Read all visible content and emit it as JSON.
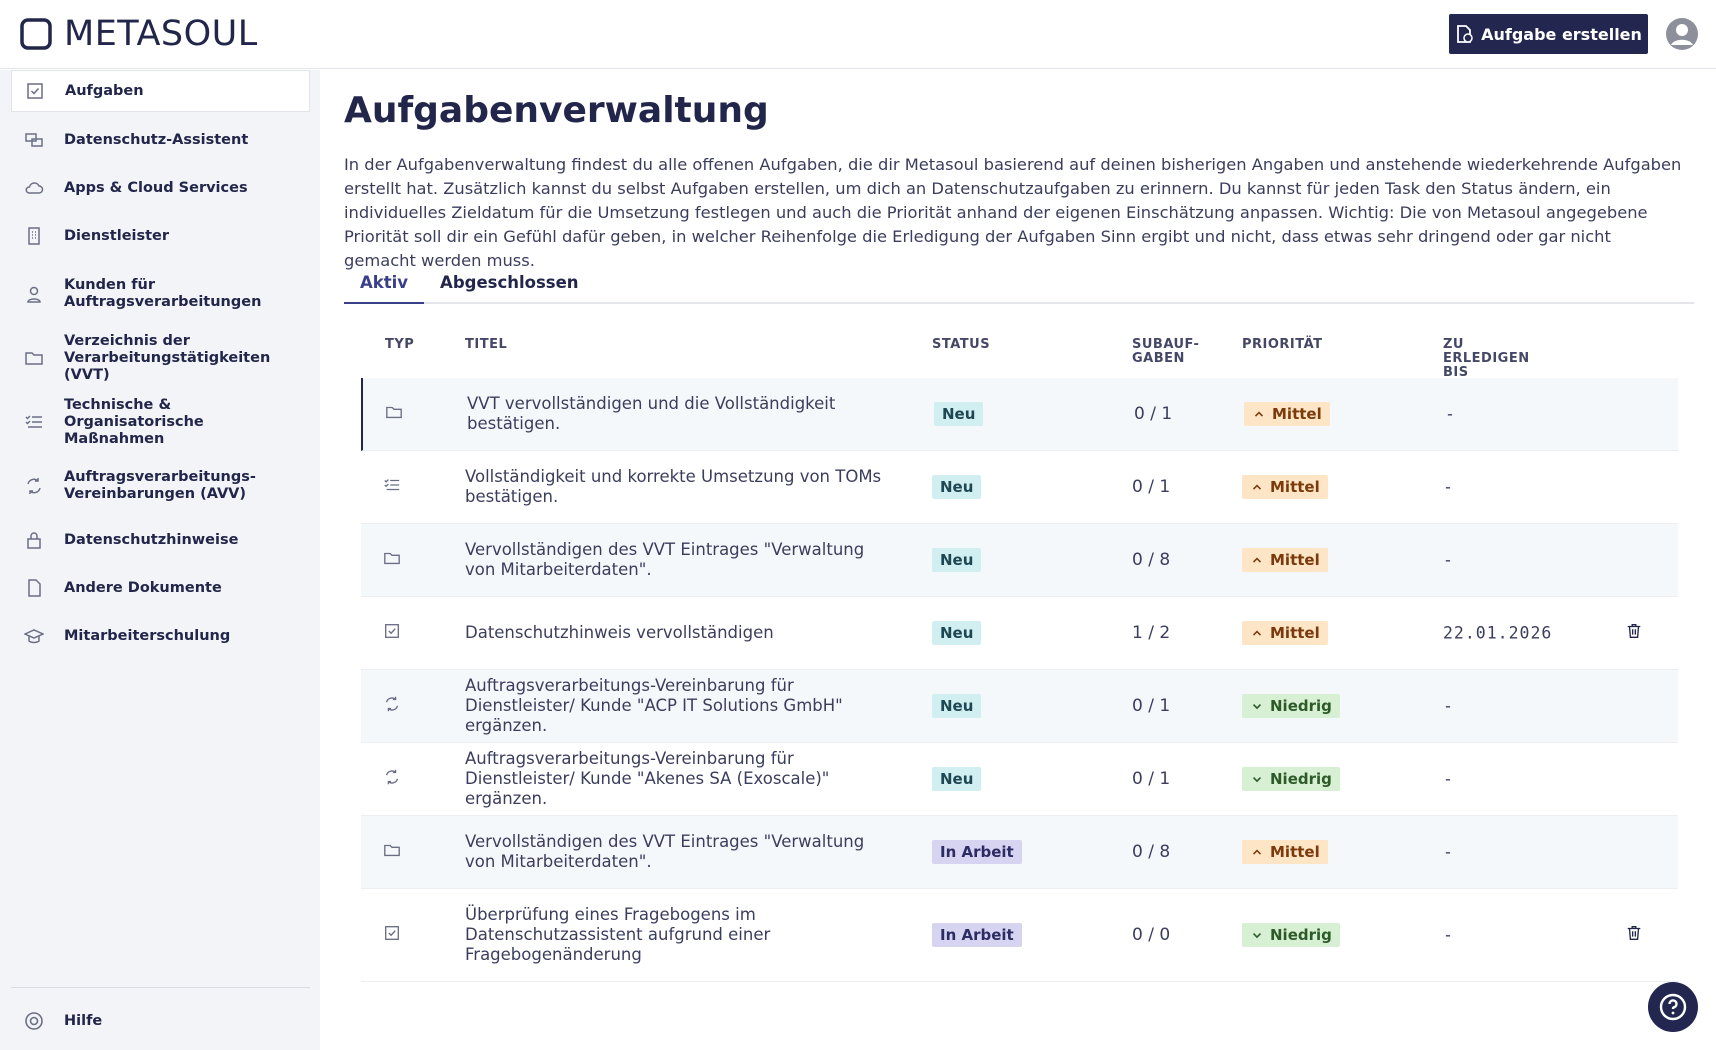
{
  "header": {
    "logo": "METASOUL",
    "create_button": "Aufgabe erstellen"
  },
  "sidebar": {
    "items": [
      "Aufgaben",
      "Datenschutz-Assistent",
      "Apps & Cloud Services",
      "Dienstleister",
      "Kunden für Auftragsverarbeitungen",
      "Verzeichnis der Verarbeitungstätigkeiten (VVT)",
      "Technische & Organisatorische Maßnahmen",
      "Auftragsverarbeitungs-Vereinbarungen (AVV)",
      "Datenschutzhinweise",
      "Andere Dokumente",
      "Mitarbeiterschulung"
    ],
    "help": "Hilfe"
  },
  "main": {
    "title": "Aufgabenverwaltung",
    "description": "In der Aufgabenverwaltung findest du alle offenen Aufgaben, die dir Metasoul basierend auf deinen bisherigen Angaben und anstehende wiederkehrende Aufgaben erstellt hat. Zusätzlich kannst du selbst Aufgaben erstellen, um dich an Datenschutzaufgaben zu erinnern. Du kannst für jeden Task den Status ändern, ein individuelles Zieldatum für die Umsetzung festlegen und auch die Priorität anhand der eigenen Einschätzung anpassen. Wichtig: Die von Metasoul angegebene Priorität soll dir ein Gefühl dafür geben, in welcher Reihenfolge die Erledigung der Aufgaben Sinn ergibt und nicht, dass etwas sehr dringend oder gar nicht gemacht werden muss.",
    "tabs": [
      "Aktiv",
      "Abgeschlossen"
    ]
  },
  "table": {
    "headers": [
      "TYP",
      "TITEL",
      "STATUS",
      "SUBAUF-GABEN",
      "PRIORITÄT",
      "ZU ERLEDIGEN BIS"
    ],
    "rows": [
      [
        "VVT vervollständigen und die Vollständigkeit bestätigen.",
        "Neu",
        "0 / 1",
        "Mittel",
        "-"
      ],
      [
        "Vollständigkeit und korrekte Umsetzung von TOMs bestätigen.",
        "Neu",
        "0 / 1",
        "Mittel",
        "-"
      ],
      [
        "Vervollständigen des VVT Eintrages \"Verwaltung von Mitarbeiterdaten\".",
        "Neu",
        "0 / 8",
        "Mittel",
        "-"
      ],
      [
        "Datenschutzhinweis vervollständigen",
        "Neu",
        "1 / 2",
        "Mittel",
        "22.01.2026"
      ],
      [
        "Auftragsverarbeitungs-Vereinbarung für Dienstleister/ Kunde \"ACP IT Solutions GmbH\" ergänzen.",
        "Neu",
        "0 / 1",
        "Niedrig",
        "-"
      ],
      [
        "Auftragsverarbeitungs-Vereinbarung für Dienstleister/ Kunde \"Akenes SA (Exoscale)\" ergänzen.",
        "Neu",
        "0 / 1",
        "Niedrig",
        "-"
      ],
      [
        "Vervollständigen des VVT Eintrages \"Verwaltung von Mitarbeiterdaten\".",
        "In Arbeit",
        "0 / 8",
        "Mittel",
        "-"
      ],
      [
        "Überprüfung eines Fragebogens im Datenschutzassistent aufgrund einer Fragebogenänderung",
        "In Arbeit",
        "0 / 0",
        "Niedrig",
        "-"
      ]
    ]
  }
}
